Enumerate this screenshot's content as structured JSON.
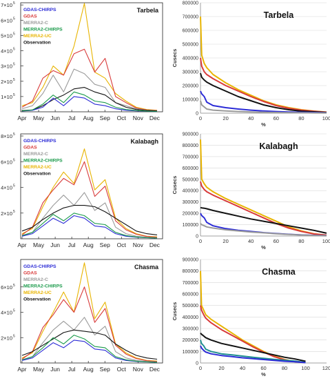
{
  "colors": {
    "GDAS-CHIRPS": "#2b2bd6",
    "GDAS": "#d83a3a",
    "MERRA2-C": "#9a9a9a",
    "MERRA2-CHIRPS": "#1a9a4a",
    "MERRA2-UC": "#e8b400",
    "Observation": "#111111",
    "Teal": "#1f8f8f",
    "Pink": "#f2a9c9"
  },
  "legend": [
    {
      "key": "GDAS-CHIRPS",
      "label": "GDAS-CHIRPS"
    },
    {
      "key": "GDAS",
      "label": "GDAS"
    },
    {
      "key": "MERRA2-C",
      "label": "MERRA2-C"
    },
    {
      "key": "MERRA2-CHIRPS",
      "label": "MERRA2-CHIRPS"
    },
    {
      "key": "MERRA2-UC",
      "label": "MERRA2-UC"
    },
    {
      "key": "Observation",
      "label": "Observation"
    }
  ],
  "chart_data": [
    {
      "type": "line",
      "panel": "tarbela-hydrograph",
      "title": "Tarbela",
      "x_ticks": [
        "Apr",
        "May",
        "Jun",
        "Jul",
        "Aug",
        "Sep",
        "Oct",
        "Nov",
        "Dec"
      ],
      "y_ticks": [
        "1×10",
        "2×10",
        "3×10",
        "4×10",
        "5×10",
        "6×10",
        "7×10"
      ],
      "y_exp": "5",
      "ylim": [
        0,
        700000
      ],
      "series": [
        {
          "key": "MERRA2-UC",
          "values": [
            40000,
            60000,
            160000,
            300000,
            240000,
            430000,
            710000,
            260000,
            220000,
            120000,
            70000,
            30000,
            15000,
            10000
          ]
        },
        {
          "key": "GDAS",
          "values": [
            30000,
            70000,
            220000,
            270000,
            240000,
            380000,
            410000,
            260000,
            350000,
            100000,
            60000,
            25000,
            12000,
            8000
          ]
        },
        {
          "key": "MERRA2-C",
          "values": [
            20000,
            40000,
            120000,
            240000,
            130000,
            280000,
            250000,
            180000,
            160000,
            60000,
            40000,
            20000,
            10000,
            6000
          ]
        },
        {
          "key": "Observation",
          "values": [
            8000,
            12000,
            40000,
            80000,
            110000,
            150000,
            160000,
            130000,
            110000,
            60000,
            30000,
            15000,
            9000,
            6000
          ]
        },
        {
          "key": "GDAS-CHIRPS",
          "values": [
            5000,
            10000,
            30000,
            90000,
            40000,
            100000,
            90000,
            50000,
            40000,
            20000,
            10000,
            6000,
            4000,
            3000
          ]
        },
        {
          "key": "MERRA2-CHIRPS",
          "values": [
            6000,
            12000,
            50000,
            110000,
            60000,
            130000,
            110000,
            70000,
            60000,
            30000,
            15000,
            8000,
            5000,
            3000
          ]
        }
      ]
    },
    {
      "type": "line",
      "panel": "kalabagh-hydrograph",
      "title": "Kalabagh",
      "x_ticks": [
        "Apr",
        "May",
        "Jun",
        "Jul",
        "Aug",
        "Sep",
        "Oct",
        "Nov",
        "Dec"
      ],
      "y_ticks": [
        "2×10",
        "4×10",
        "6×10",
        "8×10"
      ],
      "y_exp": "5",
      "ylim": [
        0,
        800000
      ],
      "series": [
        {
          "key": "MERRA2-UC",
          "values": [
            40000,
            80000,
            250000,
            400000,
            520000,
            430000,
            700000,
            380000,
            460000,
            160000,
            80000,
            40000,
            20000,
            15000
          ]
        },
        {
          "key": "GDAS",
          "values": [
            30000,
            90000,
            280000,
            380000,
            470000,
            420000,
            600000,
            330000,
            410000,
            140000,
            70000,
            35000,
            18000,
            12000
          ]
        },
        {
          "key": "MERRA2-C",
          "values": [
            20000,
            50000,
            160000,
            260000,
            340000,
            260000,
            360000,
            220000,
            280000,
            90000,
            40000,
            20000,
            12000,
            8000
          ]
        },
        {
          "key": "Observation",
          "values": [
            60000,
            90000,
            150000,
            200000,
            240000,
            260000,
            260000,
            250000,
            210000,
            160000,
            110000,
            60000,
            40000,
            30000
          ]
        },
        {
          "key": "GDAS-CHIRPS",
          "values": [
            20000,
            40000,
            100000,
            160000,
            120000,
            180000,
            160000,
            100000,
            90000,
            40000,
            20000,
            12000,
            8000,
            5000
          ]
        },
        {
          "key": "MERRA2-CHIRPS",
          "values": [
            25000,
            50000,
            120000,
            190000,
            140000,
            200000,
            180000,
            120000,
            110000,
            50000,
            25000,
            14000,
            9000,
            6000
          ]
        }
      ]
    },
    {
      "type": "line",
      "panel": "chasma-hydrograph",
      "title": "Chasma",
      "x_ticks": [
        "Apr",
        "May",
        "Jun",
        "Jul",
        "Aug",
        "Sep",
        "Oct",
        "Nov",
        "Dec"
      ],
      "y_ticks": [
        "2×10",
        "4×10",
        "6×10"
      ],
      "y_exp": "5",
      "ylim": [
        0,
        800000
      ],
      "series": [
        {
          "key": "MERRA2-UC",
          "values": [
            40000,
            80000,
            250000,
            400000,
            560000,
            400000,
            790000,
            350000,
            480000,
            150000,
            80000,
            40000,
            20000,
            15000
          ]
        },
        {
          "key": "GDAS",
          "values": [
            30000,
            90000,
            280000,
            380000,
            500000,
            400000,
            600000,
            320000,
            430000,
            140000,
            70000,
            35000,
            18000,
            12000
          ]
        },
        {
          "key": "MERRA2-C",
          "values": [
            20000,
            50000,
            160000,
            260000,
            330000,
            260000,
            360000,
            220000,
            290000,
            90000,
            40000,
            20000,
            12000,
            8000
          ]
        },
        {
          "key": "Observation",
          "values": [
            60000,
            90000,
            140000,
            190000,
            240000,
            260000,
            250000,
            240000,
            220000,
            150000,
            100000,
            60000,
            40000,
            30000
          ]
        },
        {
          "key": "GDAS-CHIRPS",
          "values": [
            20000,
            40000,
            100000,
            160000,
            120000,
            180000,
            170000,
            110000,
            100000,
            40000,
            20000,
            12000,
            8000,
            5000
          ]
        },
        {
          "key": "MERRA2-CHIRPS",
          "values": [
            25000,
            50000,
            120000,
            200000,
            150000,
            220000,
            190000,
            130000,
            120000,
            50000,
            25000,
            14000,
            9000,
            6000
          ]
        }
      ]
    },
    {
      "type": "line",
      "panel": "tarbela-fdc",
      "title": "Tarbela",
      "ylabel": "Cusecs",
      "xlabel": "%",
      "xlim": [
        0,
        100
      ],
      "ylim": [
        0,
        800000
      ],
      "x_ticks": [
        "0",
        "20",
        "40",
        "60",
        "80",
        "100"
      ],
      "y_ticks": [
        "0",
        "100000",
        "200000",
        "300000",
        "400000",
        "500000",
        "600000",
        "700000",
        "800000"
      ],
      "x": [
        0,
        1,
        3,
        5,
        10,
        20,
        30,
        40,
        50,
        60,
        70,
        80,
        90,
        100
      ],
      "series": [
        {
          "key": "MERRA2-UC",
          "values": [
            700000,
            420000,
            360000,
            330000,
            280000,
            220000,
            170000,
            130000,
            90000,
            60000,
            40000,
            25000,
            15000,
            8000
          ]
        },
        {
          "key": "GDAS",
          "values": [
            400000,
            340000,
            300000,
            280000,
            250000,
            200000,
            160000,
            120000,
            85000,
            55000,
            35000,
            22000,
            14000,
            7000
          ]
        },
        {
          "key": "Observation",
          "values": [
            290000,
            260000,
            240000,
            225000,
            200000,
            160000,
            120000,
            90000,
            60000,
            40000,
            25000,
            15000,
            10000,
            5000
          ]
        },
        {
          "key": "GDAS-CHIRPS",
          "values": [
            160000,
            140000,
            120000,
            80000,
            55000,
            40000,
            30000,
            22000,
            16000,
            12000,
            9000,
            7000,
            5000,
            3000
          ]
        },
        {
          "key": "MERRA2-C",
          "values": [
            90000,
            60000,
            45000,
            30000,
            22000,
            16000,
            12000,
            9000,
            7000,
            5000,
            4000,
            3000,
            2000,
            1000
          ]
        }
      ]
    },
    {
      "type": "line",
      "panel": "kalabagh-fdc",
      "title": "Kalabagh",
      "ylabel": "Cusecs",
      "xlabel": "%",
      "xlim": [
        0,
        100
      ],
      "ylim": [
        0,
        900000
      ],
      "x_ticks": [
        "0",
        "20",
        "40",
        "60",
        "80",
        "100"
      ],
      "y_ticks": [
        "0",
        "100000",
        "200000",
        "300000",
        "400000",
        "500000",
        "600000",
        "700000",
        "800000",
        "900000"
      ],
      "x": [
        0,
        1,
        3,
        5,
        10,
        20,
        30,
        40,
        50,
        60,
        70,
        80,
        90,
        100
      ],
      "series": [
        {
          "key": "MERRA2-UC",
          "values": [
            850000,
            500000,
            460000,
            430000,
            390000,
            330000,
            280000,
            230000,
            180000,
            130000,
            80000,
            45000,
            20000,
            8000
          ]
        },
        {
          "key": "GDAS",
          "values": [
            480000,
            440000,
            410000,
            390000,
            360000,
            310000,
            260000,
            210000,
            160000,
            110000,
            70000,
            40000,
            18000,
            7000
          ]
        },
        {
          "key": "Observation",
          "values": [
            250000,
            248000,
            245000,
            240000,
            225000,
            200000,
            175000,
            150000,
            130000,
            110000,
            90000,
            70000,
            50000,
            25000
          ]
        },
        {
          "key": "GDAS-CHIRPS",
          "values": [
            200000,
            180000,
            160000,
            120000,
            90000,
            65000,
            50000,
            40000,
            30000,
            22000,
            15000,
            10000,
            6000,
            3000
          ]
        },
        {
          "key": "MERRA2-C",
          "values": [
            110000,
            100000,
            90000,
            80000,
            70000,
            55000,
            45000,
            35000,
            28000,
            20000,
            14000,
            9000,
            5000,
            2000
          ]
        }
      ]
    },
    {
      "type": "line",
      "panel": "chasma-fdc",
      "title": "Chasma",
      "ylabel": "Cusecs",
      "xlabel": "%",
      "xlim": [
        0,
        120
      ],
      "ylim": [
        0,
        900000
      ],
      "x_ticks": [
        "0",
        "20",
        "40",
        "60",
        "80",
        "100",
        "120"
      ],
      "y_ticks": [
        "0",
        "100000",
        "200000",
        "300000",
        "400000",
        "500000",
        "600000",
        "700000",
        "800000",
        "900000"
      ],
      "x": [
        0,
        1,
        3,
        5,
        10,
        20,
        30,
        40,
        50,
        60,
        70,
        80,
        90,
        100
      ],
      "series": [
        {
          "key": "MERRA2-UC",
          "values": [
            800000,
            500000,
            460000,
            420000,
            380000,
            320000,
            260000,
            200000,
            150000,
            100000,
            60000,
            30000,
            12000,
            5000
          ]
        },
        {
          "key": "GDAS",
          "values": [
            500000,
            460000,
            420000,
            390000,
            350000,
            290000,
            240000,
            190000,
            140000,
            95000,
            55000,
            28000,
            10000,
            4000
          ]
        },
        {
          "key": "Observation",
          "values": [
            260000,
            250000,
            235000,
            220000,
            200000,
            170000,
            150000,
            130000,
            110000,
            90000,
            70000,
            50000,
            35000,
            15000
          ]
        },
        {
          "key": "Teal",
          "values": [
            200000,
            170000,
            150000,
            120000,
            100000,
            80000,
            70000,
            60000,
            50000,
            40000,
            32000,
            24000,
            16000,
            5000
          ]
        },
        {
          "key": "GDAS-CHIRPS",
          "values": [
            150000,
            130000,
            110000,
            95000,
            80000,
            65000,
            55000,
            45000,
            38000,
            30000,
            22000,
            15000,
            10000,
            3000
          ]
        }
      ]
    }
  ]
}
